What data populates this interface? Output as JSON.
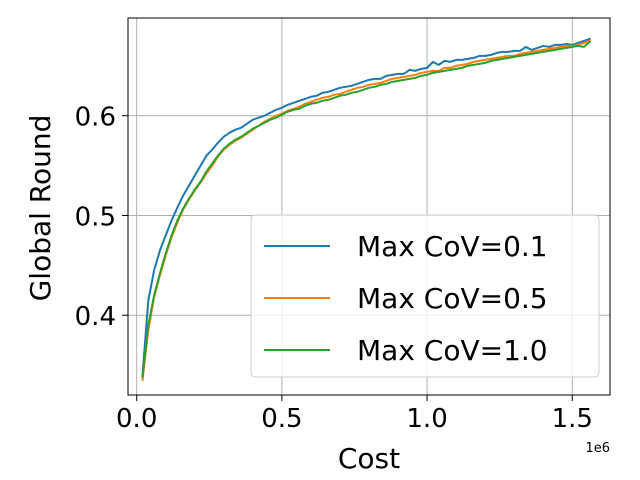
{
  "chart_data": {
    "type": "line",
    "xlabel": "Cost",
    "ylabel": "Global Round",
    "x_offset_label": "1e6",
    "xlim": [
      -0.03,
      1.63
    ],
    "ylim": [
      0.32,
      0.698
    ],
    "xticks": [
      0.0,
      0.5,
      1.0,
      1.5
    ],
    "xtick_labels": [
      "0.0",
      "0.5",
      "1.0",
      "1.5"
    ],
    "yticks": [
      0.4,
      0.5,
      0.6
    ],
    "ytick_labels": [
      "0.4",
      "0.5",
      "0.6"
    ],
    "grid": true,
    "legend_position": "lower-right",
    "series": [
      {
        "name": "Max CoV=0.1",
        "color": "#1f77b4",
        "x": [
          0.02,
          0.04,
          0.06,
          0.08,
          0.1,
          0.12,
          0.14,
          0.16,
          0.18,
          0.2,
          0.22,
          0.24,
          0.26,
          0.28,
          0.3,
          0.32,
          0.34,
          0.36,
          0.38,
          0.4,
          0.42,
          0.44,
          0.46,
          0.48,
          0.5,
          0.52,
          0.54,
          0.56,
          0.58,
          0.6,
          0.62,
          0.64,
          0.66,
          0.68,
          0.7,
          0.72,
          0.74,
          0.76,
          0.78,
          0.8,
          0.82,
          0.84,
          0.86,
          0.88,
          0.9,
          0.92,
          0.94,
          0.96,
          0.98,
          1.0,
          1.02,
          1.04,
          1.06,
          1.08,
          1.1,
          1.12,
          1.14,
          1.16,
          1.18,
          1.2,
          1.22,
          1.24,
          1.26,
          1.28,
          1.3,
          1.32,
          1.34,
          1.36,
          1.38,
          1.4,
          1.42,
          1.44,
          1.46,
          1.48,
          1.5,
          1.52,
          1.54,
          1.56
        ],
        "values": [
          0.34,
          0.415,
          0.445,
          0.465,
          0.48,
          0.495,
          0.508,
          0.52,
          0.53,
          0.54,
          0.55,
          0.56,
          0.566,
          0.573,
          0.579,
          0.583,
          0.586,
          0.588,
          0.592,
          0.596,
          0.598,
          0.6,
          0.603,
          0.606,
          0.608,
          0.611,
          0.613,
          0.615,
          0.617,
          0.619,
          0.62,
          0.623,
          0.624,
          0.626,
          0.628,
          0.629,
          0.63,
          0.632,
          0.634,
          0.636,
          0.637,
          0.637,
          0.64,
          0.641,
          0.642,
          0.642,
          0.646,
          0.645,
          0.647,
          0.648,
          0.654,
          0.651,
          0.655,
          0.654,
          0.656,
          0.656,
          0.657,
          0.658,
          0.66,
          0.66,
          0.661,
          0.663,
          0.664,
          0.664,
          0.665,
          0.665,
          0.669,
          0.666,
          0.668,
          0.67,
          0.669,
          0.671,
          0.671,
          0.672,
          0.671,
          0.673,
          0.675,
          0.677
        ]
      },
      {
        "name": "Max CoV=0.5",
        "color": "#ff7f0e",
        "x": [
          0.02,
          0.04,
          0.06,
          0.08,
          0.1,
          0.12,
          0.14,
          0.16,
          0.18,
          0.2,
          0.22,
          0.24,
          0.26,
          0.28,
          0.3,
          0.32,
          0.34,
          0.36,
          0.38,
          0.4,
          0.42,
          0.44,
          0.46,
          0.48,
          0.5,
          0.52,
          0.54,
          0.56,
          0.58,
          0.6,
          0.62,
          0.64,
          0.66,
          0.68,
          0.7,
          0.72,
          0.74,
          0.76,
          0.78,
          0.8,
          0.82,
          0.84,
          0.86,
          0.88,
          0.9,
          0.92,
          0.94,
          0.96,
          0.98,
          1.0,
          1.02,
          1.04,
          1.06,
          1.08,
          1.1,
          1.12,
          1.14,
          1.16,
          1.18,
          1.2,
          1.22,
          1.24,
          1.26,
          1.28,
          1.3,
          1.32,
          1.34,
          1.36,
          1.38,
          1.4,
          1.42,
          1.44,
          1.46,
          1.48,
          1.5,
          1.52,
          1.54,
          1.56
        ],
        "values": [
          0.335,
          0.385,
          0.418,
          0.44,
          0.46,
          0.478,
          0.493,
          0.506,
          0.516,
          0.525,
          0.533,
          0.542,
          0.55,
          0.559,
          0.566,
          0.571,
          0.575,
          0.578,
          0.582,
          0.586,
          0.59,
          0.594,
          0.597,
          0.6,
          0.602,
          0.605,
          0.607,
          0.609,
          0.612,
          0.614,
          0.616,
          0.618,
          0.619,
          0.621,
          0.622,
          0.624,
          0.626,
          0.628,
          0.629,
          0.631,
          0.632,
          0.633,
          0.635,
          0.637,
          0.638,
          0.639,
          0.64,
          0.641,
          0.643,
          0.644,
          0.645,
          0.645,
          0.648,
          0.648,
          0.65,
          0.651,
          0.652,
          0.654,
          0.655,
          0.656,
          0.657,
          0.658,
          0.659,
          0.66,
          0.66,
          0.662,
          0.663,
          0.664,
          0.665,
          0.666,
          0.667,
          0.668,
          0.669,
          0.67,
          0.67,
          0.671,
          0.673,
          0.675
        ]
      },
      {
        "name": "Max CoV=1.0",
        "color": "#2ca02c",
        "x": [
          0.02,
          0.04,
          0.06,
          0.08,
          0.1,
          0.12,
          0.14,
          0.16,
          0.18,
          0.2,
          0.22,
          0.24,
          0.26,
          0.28,
          0.3,
          0.32,
          0.34,
          0.36,
          0.38,
          0.4,
          0.42,
          0.44,
          0.46,
          0.48,
          0.5,
          0.52,
          0.54,
          0.56,
          0.58,
          0.6,
          0.62,
          0.64,
          0.66,
          0.68,
          0.7,
          0.72,
          0.74,
          0.76,
          0.78,
          0.8,
          0.82,
          0.84,
          0.86,
          0.88,
          0.9,
          0.92,
          0.94,
          0.96,
          0.98,
          1.0,
          1.02,
          1.04,
          1.06,
          1.08,
          1.1,
          1.12,
          1.14,
          1.16,
          1.18,
          1.2,
          1.22,
          1.24,
          1.26,
          1.28,
          1.3,
          1.32,
          1.34,
          1.36,
          1.38,
          1.4,
          1.42,
          1.44,
          1.46,
          1.48,
          1.5,
          1.52,
          1.54,
          1.56
        ],
        "values": [
          0.338,
          0.39,
          0.42,
          0.442,
          0.462,
          0.48,
          0.495,
          0.507,
          0.517,
          0.526,
          0.534,
          0.544,
          0.552,
          0.56,
          0.567,
          0.572,
          0.576,
          0.579,
          0.583,
          0.587,
          0.59,
          0.593,
          0.596,
          0.598,
          0.601,
          0.604,
          0.606,
          0.607,
          0.61,
          0.612,
          0.613,
          0.615,
          0.616,
          0.618,
          0.62,
          0.621,
          0.623,
          0.624,
          0.626,
          0.628,
          0.629,
          0.631,
          0.632,
          0.634,
          0.635,
          0.636,
          0.637,
          0.638,
          0.64,
          0.641,
          0.643,
          0.644,
          0.645,
          0.646,
          0.647,
          0.648,
          0.65,
          0.651,
          0.652,
          0.653,
          0.655,
          0.656,
          0.657,
          0.658,
          0.659,
          0.66,
          0.661,
          0.662,
          0.663,
          0.664,
          0.665,
          0.666,
          0.667,
          0.668,
          0.669,
          0.67,
          0.669,
          0.674
        ]
      }
    ]
  }
}
